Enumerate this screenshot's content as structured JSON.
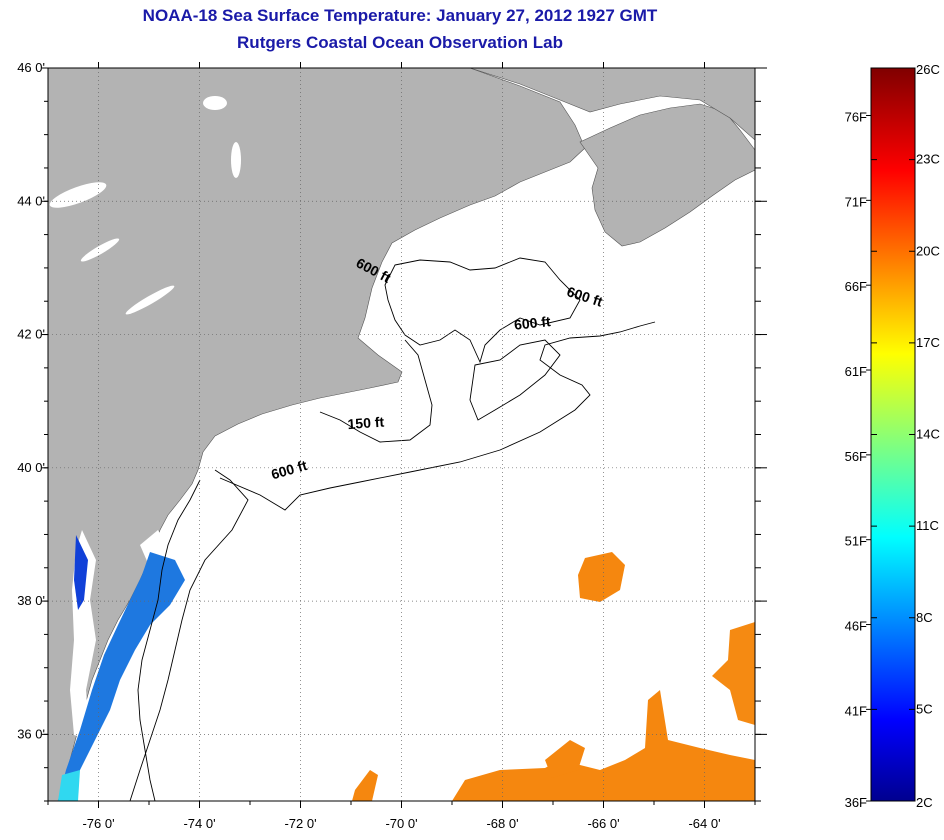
{
  "header": {
    "title": "NOAA-18 Sea Surface Temperature:  January 27, 2012 1927 GMT",
    "subtitle": "Rutgers Coastal Ocean Observation Lab"
  },
  "map": {
    "lon_range": [
      -77,
      -63
    ],
    "lat_range": [
      35,
      46
    ],
    "lon_ticks": [
      {
        "value": -76,
        "label": "-76 0'"
      },
      {
        "value": -74,
        "label": "-74 0'"
      },
      {
        "value": -72,
        "label": "-72 0'"
      },
      {
        "value": -70,
        "label": "-70 0'"
      },
      {
        "value": -68,
        "label": "-68 0'"
      },
      {
        "value": -66,
        "label": "-66 0'"
      },
      {
        "value": -64,
        "label": "-64 0'"
      }
    ],
    "lat_ticks": [
      {
        "value": 36,
        "label": "36 0'"
      },
      {
        "value": 38,
        "label": "38 0'"
      },
      {
        "value": 40,
        "label": "40 0'"
      },
      {
        "value": 42,
        "label": "42 0'"
      },
      {
        "value": 44,
        "label": "44 0'"
      },
      {
        "value": 46,
        "label": "46 0'"
      }
    ],
    "contour_labels": [
      {
        "text": "600 ft",
        "lon": -70.6,
        "lat": 42.9,
        "angle": 28
      },
      {
        "text": "600 ft",
        "lon": -66.4,
        "lat": 42.5,
        "angle": 18
      },
      {
        "text": "600 ft",
        "lon": -67.4,
        "lat": 42.1,
        "angle": -6
      },
      {
        "text": "150 ft",
        "lon": -70.7,
        "lat": 40.6,
        "angle": -4
      },
      {
        "text": "600 ft",
        "lon": -72.2,
        "lat": 39.9,
        "angle": -16
      }
    ],
    "land_color": "#b3b3b3",
    "grid": true
  },
  "colorbar": {
    "celsius_labels": [
      "26C",
      "23C",
      "20C",
      "17C",
      "14C",
      "11C",
      "8C",
      "5C",
      "2C"
    ],
    "fahrenheit_labels": [
      "76F",
      "71F",
      "66F",
      "61F",
      "56F",
      "51F",
      "46F",
      "41F",
      "36F"
    ],
    "celsius_range": [
      2,
      26
    ],
    "fahrenheit_values": [
      76,
      71,
      66,
      61,
      56,
      51,
      46,
      41,
      36
    ]
  }
}
